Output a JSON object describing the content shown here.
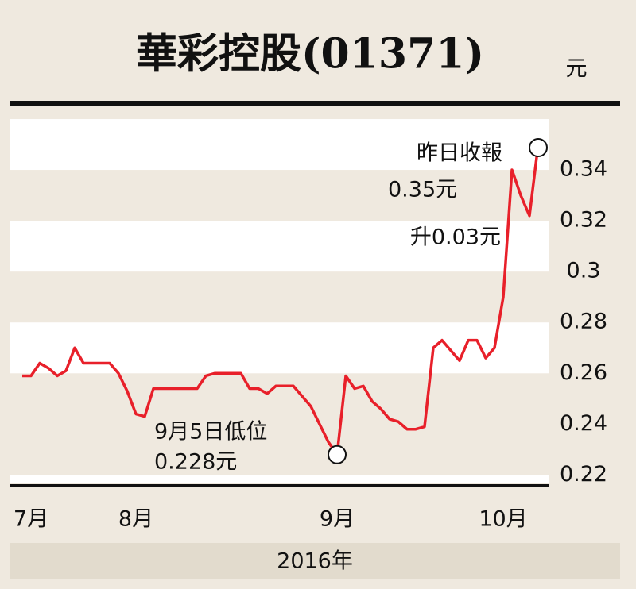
{
  "chart_data": {
    "type": "line",
    "title": "華彩控股(01371)",
    "unit_label": "元",
    "x_title": "2016年",
    "categories": [
      null,
      "7月",
      null,
      null,
      null,
      null,
      null,
      null,
      null,
      null,
      null,
      null,
      null,
      "8月",
      null,
      null,
      null,
      null,
      null,
      null,
      null,
      null,
      null,
      null,
      null,
      null,
      null,
      null,
      null,
      null,
      null,
      null,
      null,
      null,
      null,
      null,
      "9月",
      null,
      null,
      null,
      null,
      null,
      null,
      null,
      null,
      null,
      null,
      null,
      null,
      null,
      null,
      null,
      null,
      null,
      null,
      "10月",
      null,
      null,
      null,
      null
    ],
    "series": [
      {
        "name": "華彩控股",
        "color": "#e8202a",
        "values": [
          0.259,
          0.259,
          0.264,
          0.262,
          0.259,
          0.261,
          0.27,
          0.264,
          0.264,
          0.264,
          0.264,
          0.26,
          0.253,
          0.244,
          0.243,
          0.254,
          0.254,
          0.254,
          0.254,
          0.254,
          0.254,
          0.259,
          0.26,
          0.26,
          0.26,
          0.26,
          0.254,
          0.254,
          0.252,
          0.255,
          0.255,
          0.255,
          0.251,
          0.247,
          0.24,
          0.233,
          0.228,
          0.259,
          0.254,
          0.255,
          0.249,
          0.246,
          0.242,
          0.241,
          0.238,
          0.238,
          0.239,
          0.27,
          0.273,
          0.269,
          0.265,
          0.273,
          0.273,
          0.266,
          0.27,
          0.29,
          0.34,
          0.33,
          0.322,
          0.35
        ]
      }
    ],
    "ylim": [
      0.217,
      0.36
    ],
    "yticks": [
      0.22,
      0.24,
      0.26,
      0.28,
      0.3,
      0.32,
      0.34
    ],
    "annotations": [
      {
        "lines": [
          "9月5日低位",
          "0.228元"
        ],
        "index": 36
      },
      {
        "lines": [
          "昨日收報",
          "0.35元",
          "升0.03元"
        ],
        "index": 59
      }
    ]
  }
}
